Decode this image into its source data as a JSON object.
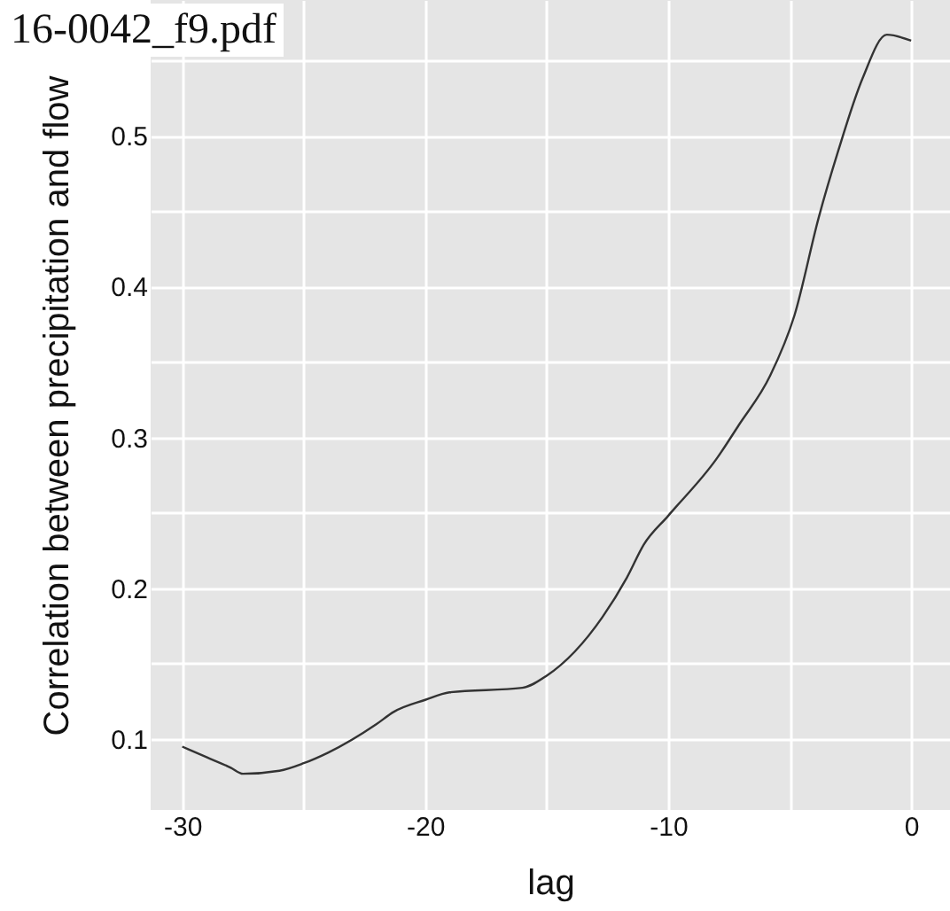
{
  "chart_data": {
    "type": "line",
    "xlabel": "lag",
    "ylabel": "Correlation between precipitation and flow",
    "annotations": [
      "16-0042_f9.pdf"
    ],
    "x": [
      -30,
      -29,
      -28,
      -27.5,
      -26,
      -25,
      -24,
      -22,
      -21.3,
      -20,
      -19,
      -16,
      -15,
      -12.7,
      -11.7,
      -11,
      -10,
      -8,
      -7.1,
      -5.8,
      -4.8,
      -3.8,
      -3,
      -2,
      -1,
      0
    ],
    "series": [
      {
        "color": "#333333",
        "values": [
          0.095,
          0.088,
          0.081,
          0.077,
          0.079,
          0.084,
          0.091,
          0.11,
          0.118,
          0.126,
          0.131,
          0.134,
          0.142,
          0.181,
          0.207,
          0.229,
          0.248,
          0.286,
          0.308,
          0.341,
          0.381,
          0.446,
          0.49,
          0.538,
          0.567,
          0.563
        ]
      }
    ],
    "xlim": [
      -31.3,
      1.6
    ],
    "ylim": [
      0.053,
      0.59
    ],
    "xticks": [
      -30,
      {
        "value": -25,
        "label": null
      },
      -20,
      {
        "value": -15,
        "label": null
      },
      -10,
      {
        "value": -5,
        "label": null
      },
      0
    ],
    "yticks": [
      0.1,
      {
        "value": 0.15,
        "label": null
      },
      0.2,
      {
        "value": 0.25,
        "label": null
      },
      0.3,
      {
        "value": 0.35,
        "label": null
      },
      0.4,
      {
        "value": 0.45,
        "label": null
      },
      0.5,
      {
        "value": 0.55,
        "label": null
      }
    ],
    "grid": true,
    "line_style": "solid"
  }
}
